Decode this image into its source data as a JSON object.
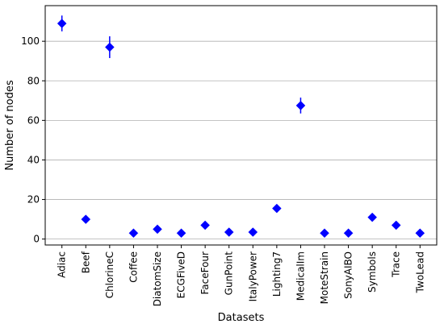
{
  "chart_data": {
    "type": "scatter",
    "title": "",
    "xlabel": "Datasets",
    "ylabel": "Number of nodes",
    "categories": [
      "Adiac",
      "Beef",
      "ChlorineC",
      "Coffee",
      "DiatomSize",
      "ECGFiveD",
      "FaceFour",
      "GunPoint",
      "ItalyPower",
      "Lighting7",
      "MedicalIm",
      "MoteStrain",
      "SonyAIBO",
      "Symbols",
      "Trace",
      "TwoLead"
    ],
    "series": [
      {
        "values": [
          109,
          10,
          97,
          3,
          5,
          3,
          7,
          3.5,
          3.5,
          15.5,
          67.5,
          3,
          3,
          11,
          7,
          3
        ],
        "error": [
          4,
          0.5,
          5.5,
          0.2,
          0.5,
          0.2,
          0.5,
          0.2,
          0.2,
          0.8,
          4,
          0.2,
          0.2,
          0.5,
          0.5,
          0.2
        ],
        "marker": "diamond"
      }
    ],
    "ylim": [
      -3,
      118
    ],
    "yticks": [
      0,
      20,
      40,
      60,
      80,
      100
    ],
    "grid": "horizontal",
    "colors": {
      "marker": "#0000ff",
      "grid": "#b0b0b0",
      "axis": "#000000"
    }
  }
}
